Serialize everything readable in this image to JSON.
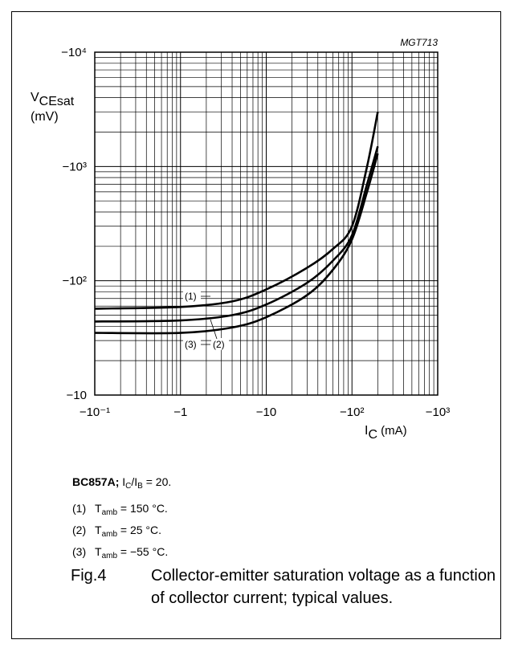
{
  "chart_data": {
    "type": "line",
    "figure_id": "MGT713",
    "xscale": "log",
    "yscale": "log",
    "xlim": [
      -0.1,
      -1000
    ],
    "ylim": [
      -10,
      -10000
    ],
    "x_tick_labels": [
      "−10⁻¹",
      "−1",
      "−10",
      "−10²",
      "−10³"
    ],
    "y_tick_labels": [
      "−10",
      "−10²",
      "−10³",
      "−10⁴"
    ],
    "xlabel_main": "I",
    "xlabel_sub": "C",
    "xlabel_unit": " (mA)",
    "ylabel_main": "V",
    "ylabel_sub": "CEsat",
    "ylabel_unit": "(mV)",
    "grid": true,
    "series": [
      {
        "name": "(1)",
        "x": [
          -0.1,
          -1,
          -4,
          -10,
          -30,
          -60,
          -100,
          -150,
          -200
        ],
        "y": [
          -57,
          -59,
          -66,
          -84,
          -130,
          -190,
          -300,
          -1000,
          -3000
        ]
      },
      {
        "name": "(2)",
        "x": [
          -0.1,
          -1,
          -4,
          -10,
          -30,
          -60,
          -100,
          -150,
          -200
        ],
        "y": [
          -44,
          -45,
          -50,
          -62,
          -96,
          -150,
          -250,
          -700,
          -1500
        ]
      },
      {
        "name": "(3)",
        "x": [
          -0.1,
          -1,
          -4,
          -10,
          -30,
          -60,
          -100,
          -150,
          -200
        ],
        "y": [
          -35,
          -35,
          -39,
          -48,
          -75,
          -125,
          -230,
          -600,
          -1300
        ]
      }
    ],
    "curve_labels": [
      {
        "text": "(1)",
        "series": 0
      },
      {
        "text": "(2)",
        "series": 1
      },
      {
        "text": "(3)",
        "series": 2
      }
    ]
  },
  "legend": {
    "device": "BC857A;",
    "ratio_main": "I",
    "ratio_sub1": "C",
    "ratio_mid": "/I",
    "ratio_sub2": "B",
    "ratio_tail": " = 20.",
    "items": [
      {
        "num": "(1)",
        "label": "T",
        "sub": "amb",
        "value": " = 150 °C."
      },
      {
        "num": "(2)",
        "label": "T",
        "sub": "amb",
        "value": " = 25 °C."
      },
      {
        "num": "(3)",
        "label": "T",
        "sub": "amb",
        "value": " = −55 °C."
      }
    ]
  },
  "caption": {
    "fig": "Fig.4",
    "text": "Collector-emitter saturation voltage as a function of collector current; typical values."
  }
}
